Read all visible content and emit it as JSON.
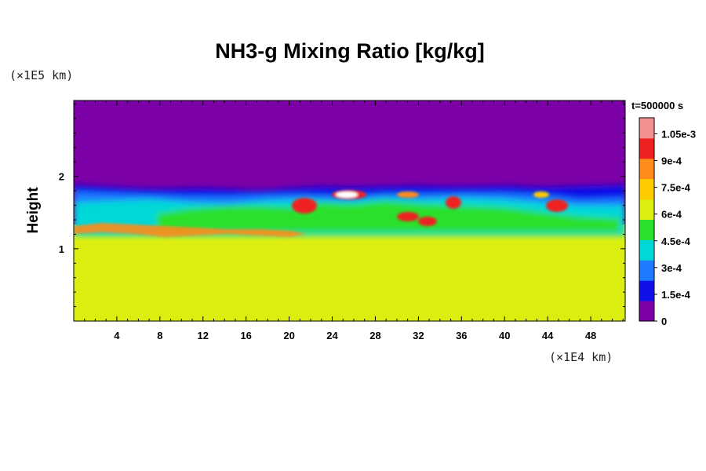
{
  "chart_data": {
    "type": "heatmap",
    "title": "NH3-g Mixing Ratio [kg/kg]",
    "ylabel": "Height",
    "y_unit": "(×1E5 km)",
    "x_unit": "(×1E4 km)",
    "time_label": "t=500000 s",
    "xlim": [
      0,
      51.2
    ],
    "ylim": [
      0,
      3.05
    ],
    "x_ticks": [
      4,
      8,
      12,
      16,
      20,
      24,
      28,
      32,
      36,
      40,
      44,
      48
    ],
    "y_ticks": [
      1,
      2
    ],
    "colorbar": {
      "min": 0,
      "max": 0.00114,
      "tick_values": [
        0,
        0.00015,
        0.0003,
        0.00045,
        0.0006,
        0.00075,
        0.0009,
        0.00105
      ],
      "tick_labels": [
        "0",
        "1.5e-4",
        "3e-4",
        "4.5e-4",
        "6e-4",
        "7.5e-4",
        "9e-4",
        "1.05e-3"
      ],
      "colors": [
        "#7b00a6",
        "#1010e8",
        "#1e7bff",
        "#00d8d8",
        "#2ae02a",
        "#dcee10",
        "#ffcc00",
        "#ff8c1a",
        "#ee2020",
        "#f09090"
      ]
    },
    "field_description": {
      "upper_layer_value": 0,
      "lower_layer_value": 0.00075,
      "cloud_top_height": 1.82,
      "transition_band_values": [
        0.0002,
        0.0003,
        0.00045,
        0.0006
      ],
      "hotspot_value": 0.00105
    }
  }
}
